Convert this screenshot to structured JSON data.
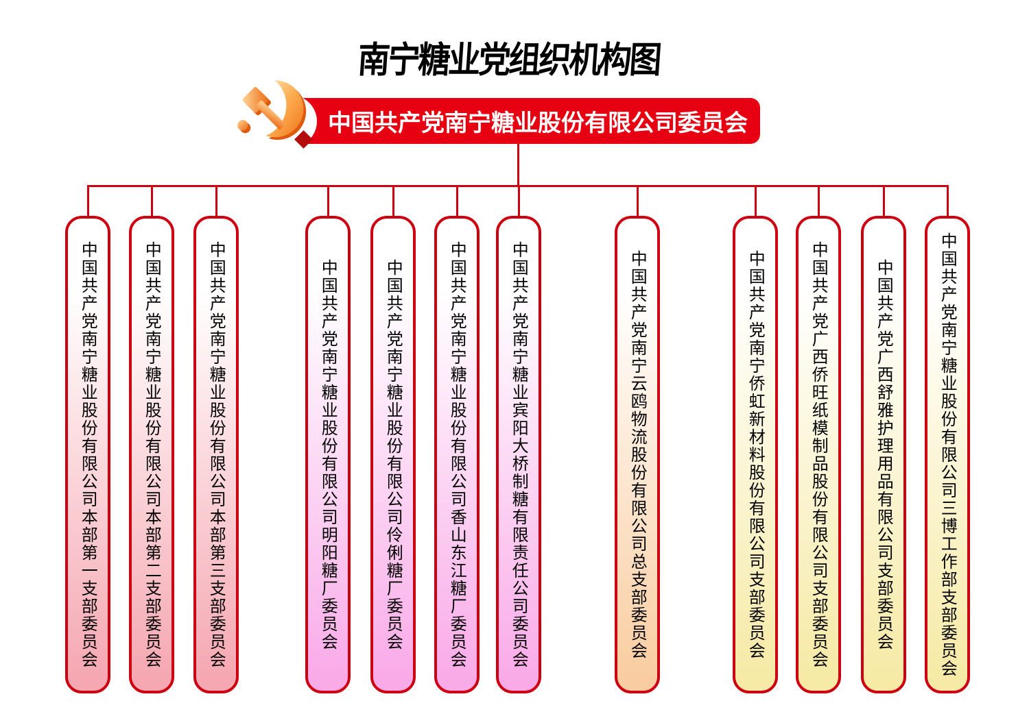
{
  "page_title": "南宁糖业党组织机构图",
  "root_committee": {
    "label": "中国共产党南宁糖业股份有限公司委员会",
    "emblem_icon": "party-emblem-icon"
  },
  "colors": {
    "banner_red": "#e60012",
    "line_red": "#cc0011",
    "pink": "#f5a8b2",
    "magenta": "#f9abe8",
    "peach": "#f9cda1",
    "yellow": "#f6eaa6",
    "emblem_gold_light": "#ffdca6",
    "emblem_gold_deep": "#f0741a",
    "emblem_shadow": "#de5a0e"
  },
  "branches": [
    {
      "label": "中国共产党南宁糖业股份有限公司本部第一支部委员会",
      "theme": "pink"
    },
    {
      "label": "中国共产党南宁糖业股份有限公司本部第二支部委员会",
      "theme": "pink"
    },
    {
      "label": "中国共产党南宁糖业股份有限公司本部第三支部委员会",
      "theme": "pink"
    },
    {
      "label": "中国共产党南宁糖业股份有限公司明阳糖厂委员会",
      "theme": "magenta"
    },
    {
      "label": "中国共产党南宁糖业股份有限公司伶俐糖厂委员会",
      "theme": "magenta"
    },
    {
      "label": "中国共产党南宁糖业股份有限公司香山东江糖厂委员会",
      "theme": "magenta"
    },
    {
      "label": "中国共产党南宁糖业宾阳大桥制糖有限责任公司委员会",
      "theme": "magenta"
    },
    {
      "label": "中国共产党南宁云鸥物流股份有限公司总支部委员会",
      "theme": "peach"
    },
    {
      "label": "中国共产党南宁侨虹新材料股份有限公司支部委员会",
      "theme": "yellow"
    },
    {
      "label": "中国共产党广西侨旺纸模制品股份有限公司支部委员会",
      "theme": "yellow"
    },
    {
      "label": "中国共产党广西舒雅护理用品有限公司支部委员会",
      "theme": "yellow"
    },
    {
      "label": "中国共产党南宁糖业股份有限公司三博工作部支部委员会",
      "theme": "yellow"
    }
  ]
}
